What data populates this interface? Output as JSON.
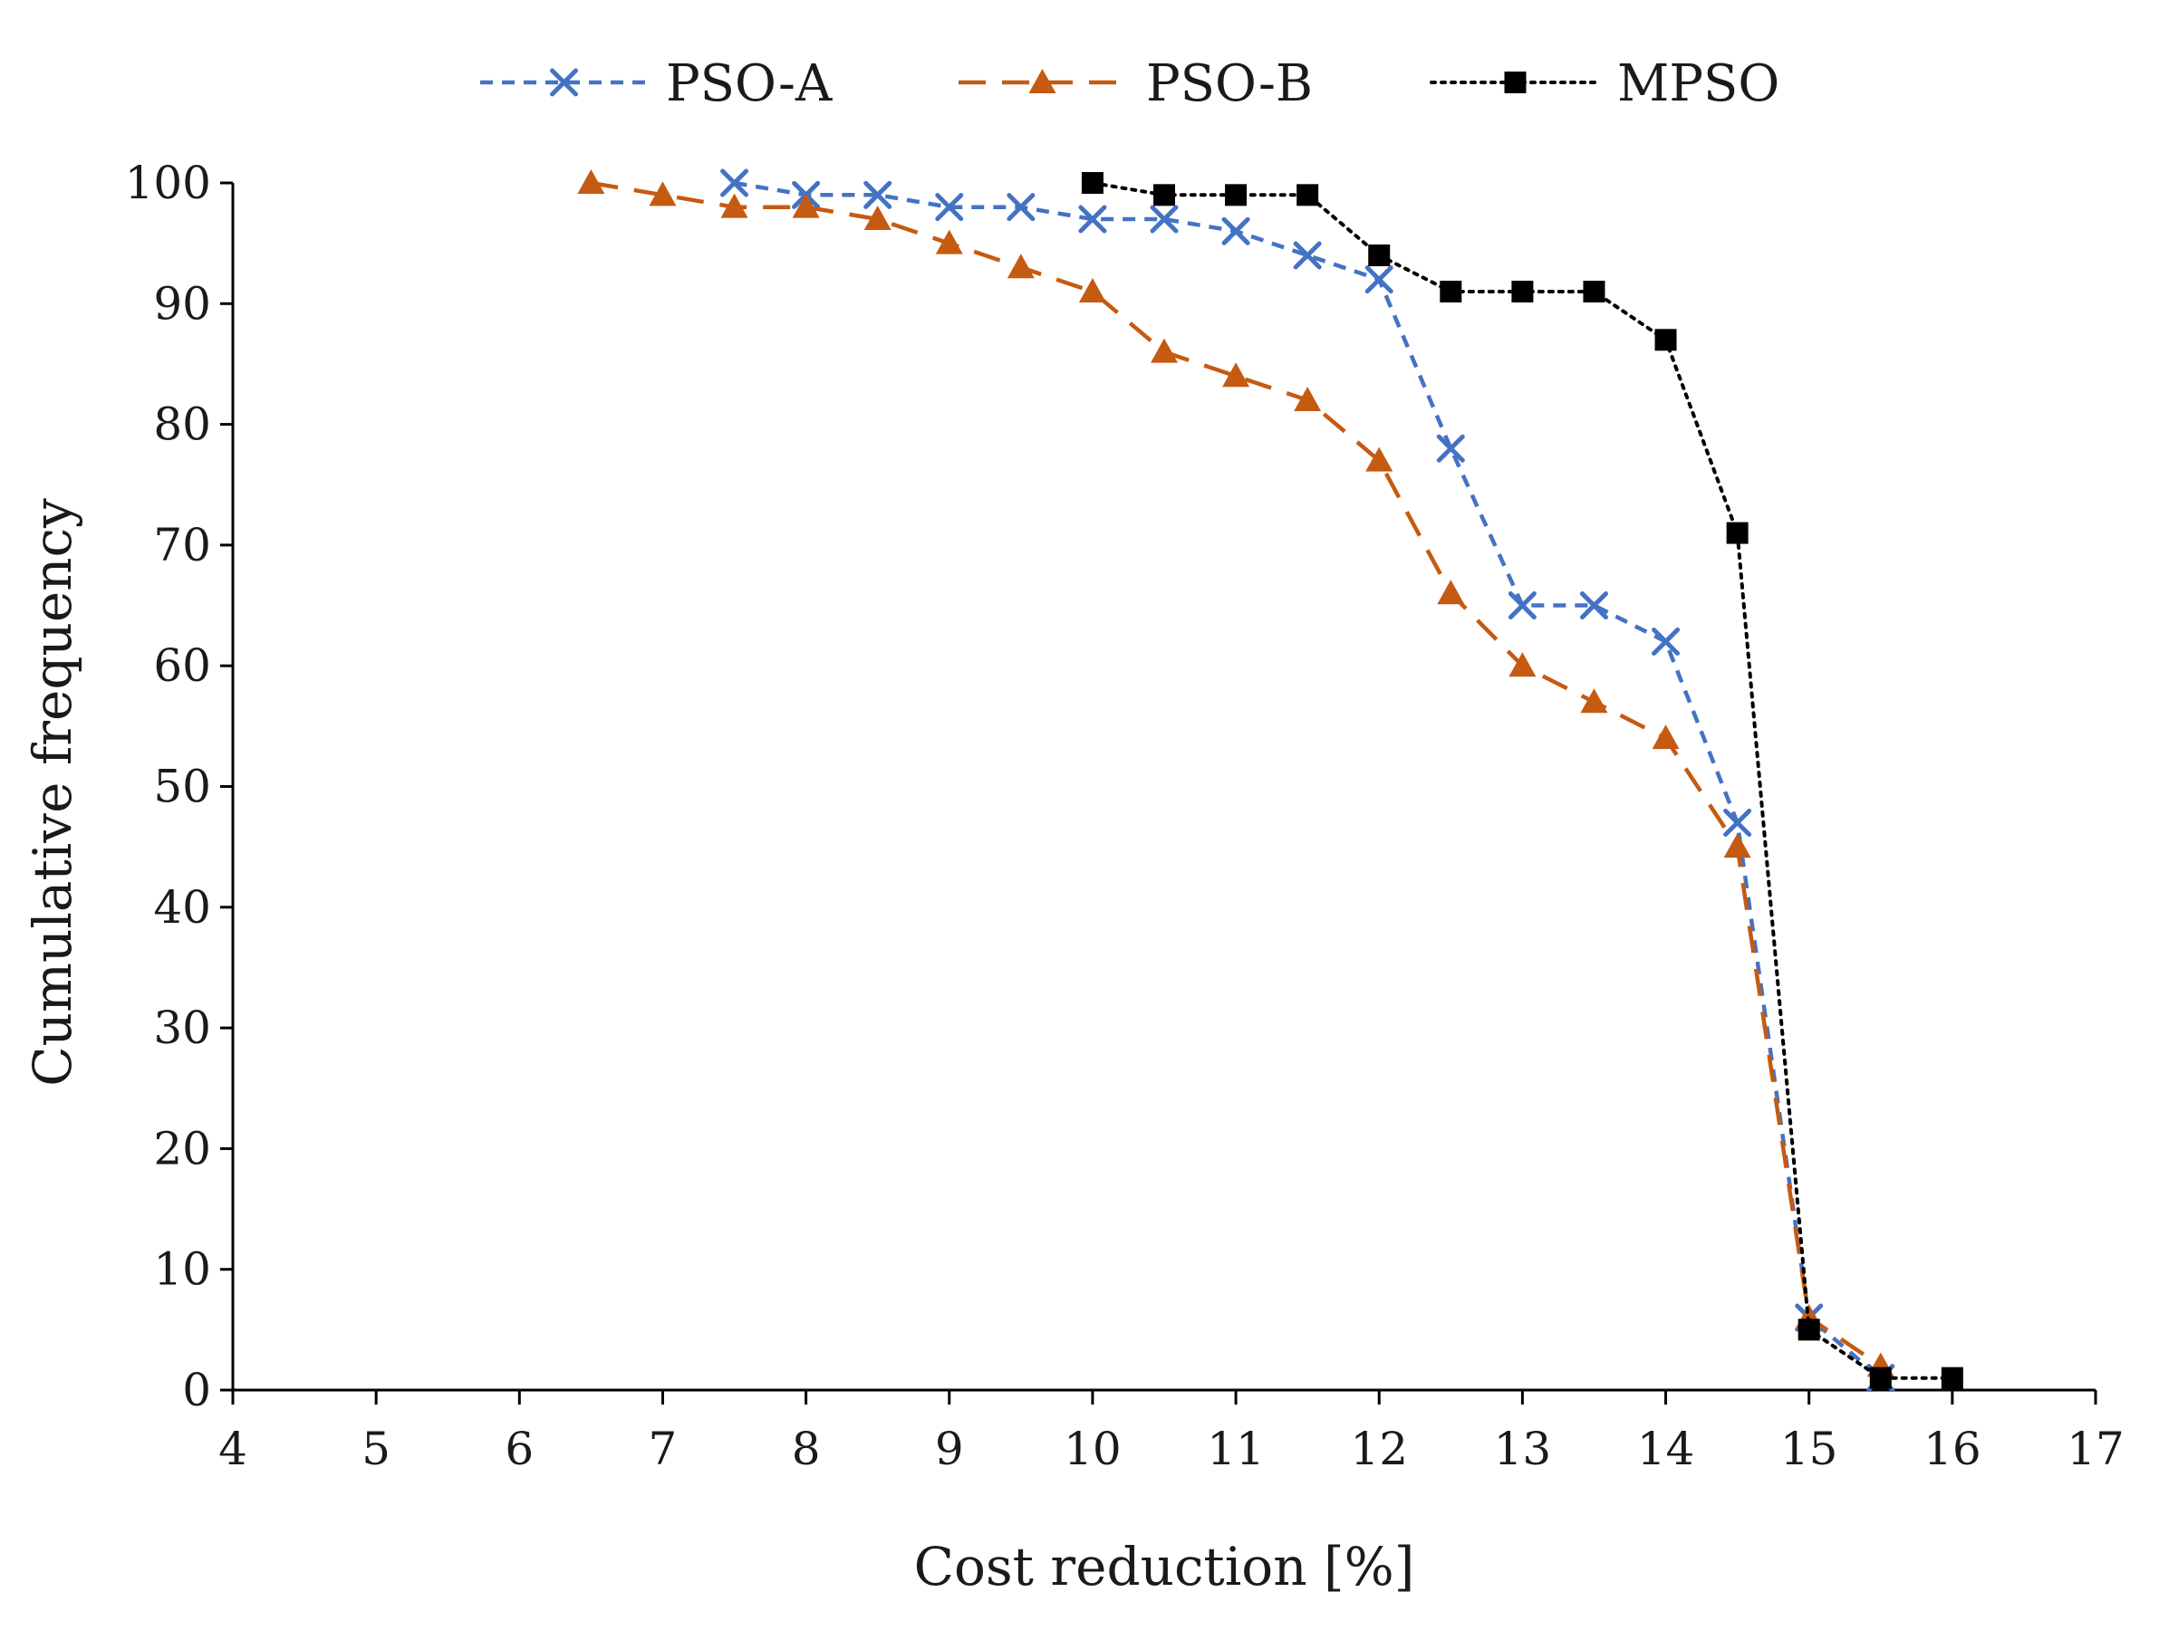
{
  "chart_data": {
    "type": "line",
    "title": "",
    "xlabel": "Cost reduction [%]",
    "ylabel": "Cumulative frequency",
    "xlim": [
      4,
      17
    ],
    "ylim": [
      0,
      100
    ],
    "xticks": [
      "4",
      "5",
      "6",
      "7",
      "8",
      "9",
      "10",
      "11",
      "12",
      "13",
      "14",
      "15",
      "16",
      "17"
    ],
    "yticks": [
      "0",
      "10",
      "20",
      "30",
      "40",
      "50",
      "60",
      "70",
      "80",
      "90",
      "100"
    ],
    "legend_position": "top",
    "series": [
      {
        "name": "PSO-A",
        "color": "#4472c4",
        "marker": "x",
        "line_style": "dashed",
        "points": [
          [
            7.5,
            100
          ],
          [
            8,
            99
          ],
          [
            8.5,
            99
          ],
          [
            9,
            98
          ],
          [
            9.5,
            98
          ],
          [
            10,
            97
          ],
          [
            10.5,
            97
          ],
          [
            11,
            96
          ],
          [
            11.5,
            94
          ],
          [
            12,
            92
          ],
          [
            12.5,
            78
          ],
          [
            13,
            65
          ],
          [
            13.5,
            65
          ],
          [
            14,
            62
          ],
          [
            14.5,
            47
          ],
          [
            15,
            6
          ],
          [
            15.5,
            1
          ]
        ]
      },
      {
        "name": "PSO-B",
        "color": "#c55a11",
        "marker": "triangle",
        "line_style": "long-dashed",
        "points": [
          [
            6.5,
            100
          ],
          [
            7,
            99
          ],
          [
            7.5,
            98
          ],
          [
            8,
            98
          ],
          [
            8.5,
            97
          ],
          [
            9,
            95
          ],
          [
            9.5,
            93
          ],
          [
            10,
            91
          ],
          [
            10.5,
            86
          ],
          [
            11,
            84
          ],
          [
            11.5,
            82
          ],
          [
            12,
            77
          ],
          [
            12.5,
            66
          ],
          [
            13,
            60
          ],
          [
            13.5,
            57
          ],
          [
            14,
            54
          ],
          [
            14.5,
            45
          ],
          [
            15,
            6
          ],
          [
            15.5,
            2
          ]
        ]
      },
      {
        "name": "MPSO",
        "color": "#000000",
        "marker": "square",
        "line_style": "dotted",
        "points": [
          [
            10,
            100
          ],
          [
            10.5,
            99
          ],
          [
            11,
            99
          ],
          [
            11.5,
            99
          ],
          [
            12,
            94
          ],
          [
            12.5,
            91
          ],
          [
            13,
            91
          ],
          [
            13.5,
            91
          ],
          [
            14,
            87
          ],
          [
            14.5,
            71
          ],
          [
            15,
            5
          ],
          [
            15.5,
            1
          ],
          [
            16,
            1
          ]
        ]
      }
    ]
  }
}
